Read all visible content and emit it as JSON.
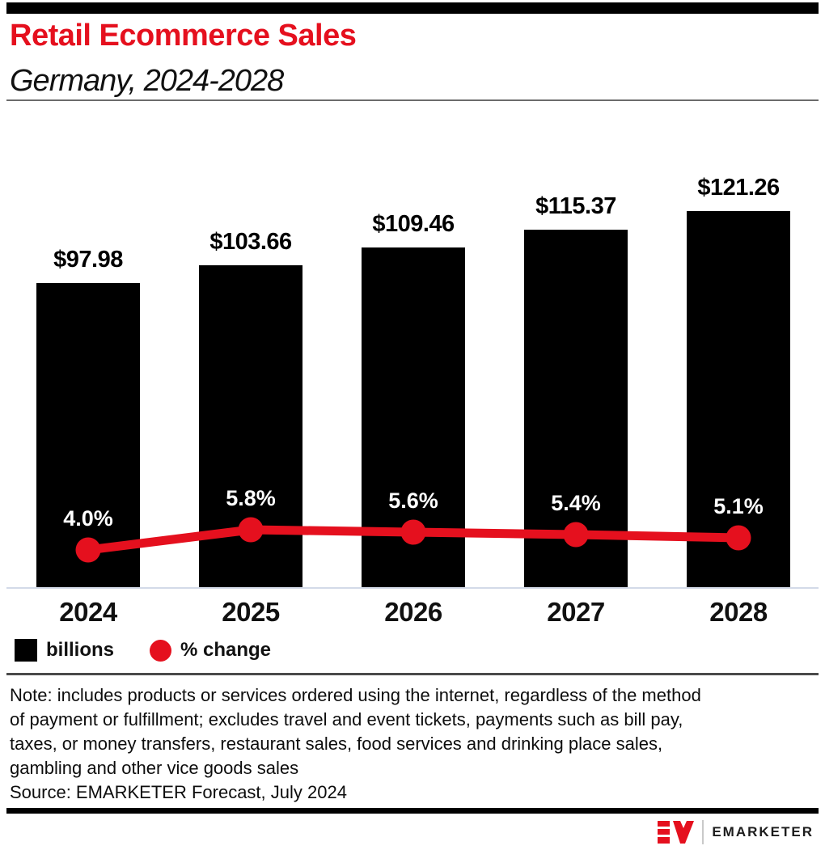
{
  "header": {
    "title": "Retail Ecommerce Sales",
    "subtitle": "Germany, 2024-2028"
  },
  "chart_data": {
    "type": "combo-bar-line",
    "categories": [
      "2024",
      "2025",
      "2026",
      "2027",
      "2028"
    ],
    "series": [
      {
        "name": "billions",
        "type": "bar",
        "color": "#000000",
        "values": [
          97.98,
          103.66,
          109.46,
          115.37,
          121.26
        ],
        "labels": [
          "$97.98",
          "$103.66",
          "$109.46",
          "$115.37",
          "$121.26"
        ]
      },
      {
        "name": "% change",
        "type": "line",
        "color": "#e5101e",
        "values": [
          4.0,
          5.8,
          5.6,
          5.4,
          5.1
        ],
        "labels": [
          "4.0%",
          "5.8%",
          "5.6%",
          "5.4%",
          "5.1%"
        ]
      }
    ],
    "y_baseline": 0,
    "grid": false,
    "legend_position": "bottom-left",
    "bar_value_prefix": "$",
    "line_value_suffix": "%"
  },
  "legend": {
    "bar_label": "billions",
    "line_label": "% change"
  },
  "note_lines": [
    "Note: includes products or services ordered using the internet, regardless of the method",
    "of payment or fulfillment; excludes travel and event tickets, payments such as bill pay,",
    "taxes, or money transfers, restaurant sales, food services and drinking place sales,",
    "gambling and other vice goods sales"
  ],
  "source": "Source: EMARKETER Forecast, July 2024",
  "footer": {
    "brand": "EMARKETER"
  },
  "colors": {
    "accent_red": "#e5101e",
    "bar_black": "#000000",
    "baseline_gray_blue": "#d3dae8"
  }
}
